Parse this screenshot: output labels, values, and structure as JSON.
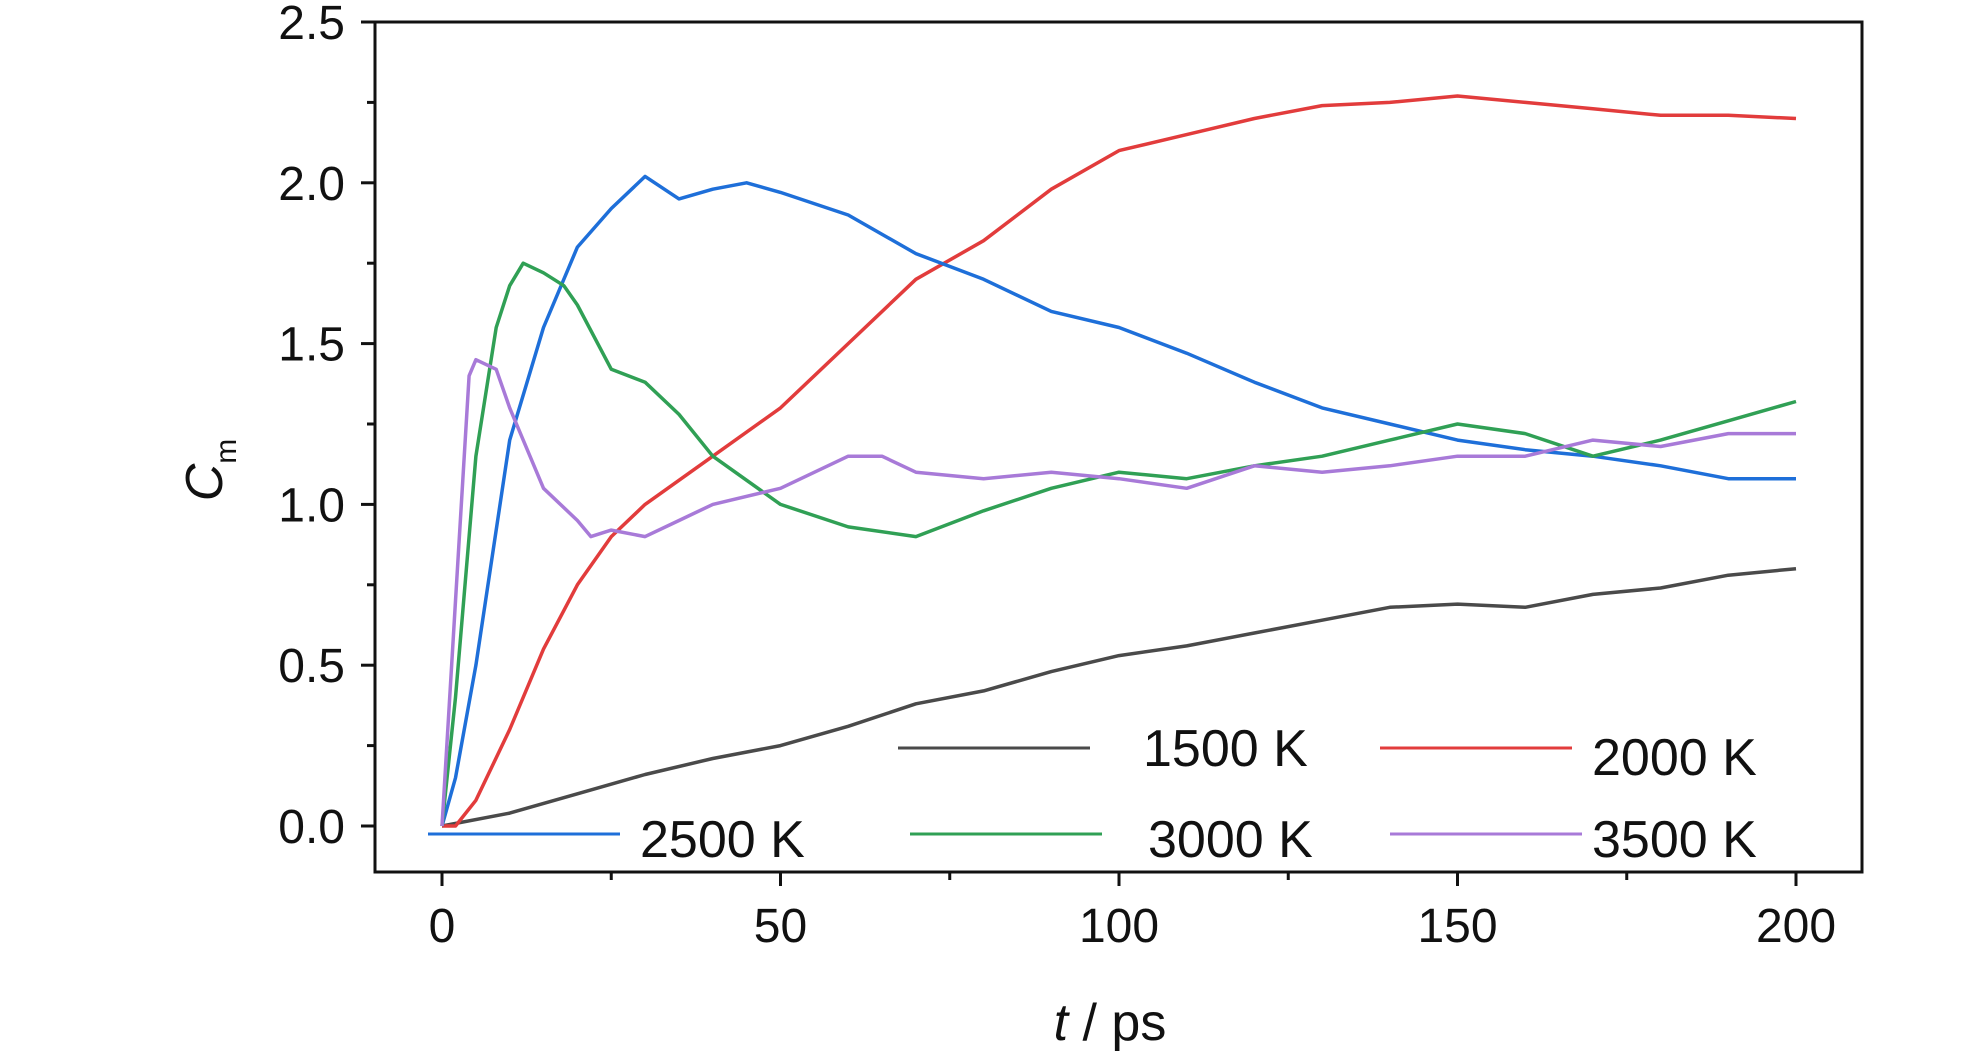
{
  "chart_data": {
    "type": "line",
    "xlabel": {
      "italic": "t",
      "rest": " / ps"
    },
    "ylabel": {
      "main": "C",
      "sub": "m"
    },
    "xlim": [
      -10,
      210
    ],
    "ylim": [
      -0.15,
      2.5
    ],
    "xticks": [
      0,
      50,
      100,
      150,
      200
    ],
    "xtick_labels": [
      "0",
      "50",
      "100",
      "150",
      "200"
    ],
    "yticks": [
      0.0,
      0.5,
      1.0,
      1.5,
      2.0,
      2.5
    ],
    "ytick_labels": [
      "0.0",
      "0.5",
      "1.0",
      "1.5",
      "2.0",
      "2.5"
    ],
    "grid": false,
    "legend_placement": "bottom",
    "series": [
      {
        "name": "1500 K",
        "color": "#4a4a4a",
        "x": [
          0,
          10,
          20,
          30,
          40,
          50,
          60,
          70,
          80,
          90,
          100,
          110,
          120,
          130,
          140,
          150,
          160,
          170,
          180,
          190,
          200
        ],
        "y": [
          0.0,
          0.04,
          0.1,
          0.16,
          0.21,
          0.25,
          0.31,
          0.38,
          0.42,
          0.48,
          0.53,
          0.56,
          0.6,
          0.64,
          0.68,
          0.69,
          0.68,
          0.72,
          0.74,
          0.78,
          0.8
        ]
      },
      {
        "name": "2000 K",
        "color": "#e23c3c",
        "x": [
          0,
          2,
          5,
          10,
          15,
          20,
          25,
          30,
          40,
          50,
          60,
          70,
          80,
          90,
          100,
          110,
          120,
          130,
          140,
          150,
          160,
          170,
          180,
          190,
          200
        ],
        "y": [
          0.0,
          0.0,
          0.08,
          0.3,
          0.55,
          0.75,
          0.9,
          1.0,
          1.15,
          1.3,
          1.5,
          1.7,
          1.82,
          1.98,
          2.1,
          2.15,
          2.2,
          2.24,
          2.25,
          2.27,
          2.25,
          2.23,
          2.21,
          2.21,
          2.2
        ]
      },
      {
        "name": "2500 K",
        "color": "#1e6fd9",
        "x": [
          0,
          2,
          5,
          10,
          15,
          20,
          25,
          30,
          35,
          40,
          45,
          50,
          60,
          70,
          80,
          90,
          100,
          110,
          120,
          130,
          140,
          150,
          160,
          170,
          180,
          190,
          200
        ],
        "y": [
          0.0,
          0.15,
          0.5,
          1.2,
          1.55,
          1.8,
          1.92,
          2.02,
          1.95,
          1.98,
          2.0,
          1.97,
          1.9,
          1.78,
          1.7,
          1.6,
          1.55,
          1.47,
          1.38,
          1.3,
          1.25,
          1.2,
          1.17,
          1.15,
          1.12,
          1.08,
          1.08
        ]
      },
      {
        "name": "3000 K",
        "color": "#30a055",
        "x": [
          0,
          2,
          5,
          8,
          10,
          12,
          15,
          18,
          20,
          25,
          30,
          35,
          40,
          50,
          60,
          70,
          80,
          90,
          100,
          110,
          120,
          130,
          140,
          150,
          160,
          170,
          180,
          190,
          200
        ],
        "y": [
          0.0,
          0.4,
          1.15,
          1.55,
          1.68,
          1.75,
          1.72,
          1.68,
          1.62,
          1.42,
          1.38,
          1.28,
          1.15,
          1.0,
          0.93,
          0.9,
          0.98,
          1.05,
          1.1,
          1.08,
          1.12,
          1.15,
          1.2,
          1.25,
          1.22,
          1.15,
          1.2,
          1.26,
          1.32
        ]
      },
      {
        "name": "3500 K",
        "color": "#a87ad8",
        "x": [
          0,
          2,
          4,
          5,
          8,
          10,
          15,
          20,
          22,
          25,
          30,
          35,
          40,
          50,
          60,
          65,
          70,
          80,
          90,
          100,
          110,
          120,
          130,
          140,
          150,
          160,
          170,
          180,
          190,
          200
        ],
        "y": [
          0.0,
          0.7,
          1.4,
          1.45,
          1.42,
          1.3,
          1.05,
          0.95,
          0.9,
          0.92,
          0.9,
          0.95,
          1.0,
          1.05,
          1.15,
          1.15,
          1.1,
          1.08,
          1.1,
          1.08,
          1.05,
          1.12,
          1.1,
          1.12,
          1.15,
          1.15,
          1.2,
          1.18,
          1.22,
          1.22
        ]
      }
    ]
  }
}
